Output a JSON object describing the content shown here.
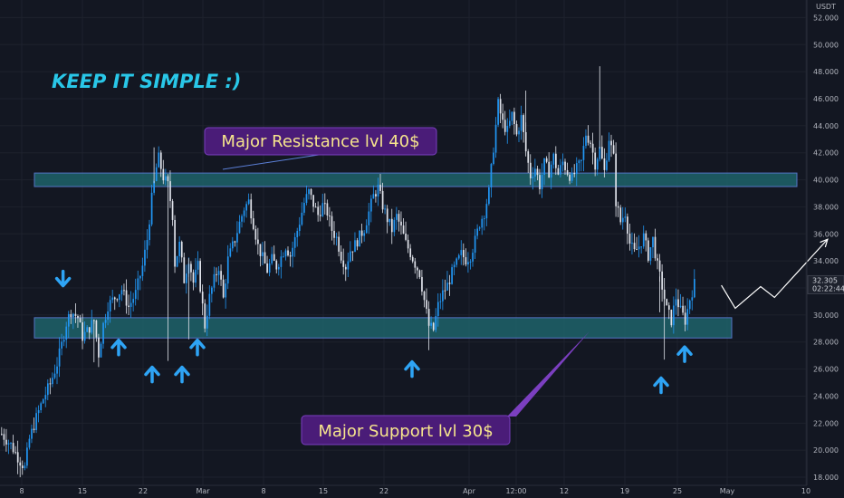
{
  "chart_data": {
    "type": "candlestick",
    "currency_label": "USDT",
    "yaxis": {
      "ticks": [
        18,
        20,
        22,
        24,
        26,
        28,
        30,
        32,
        34,
        36,
        38,
        40,
        42,
        44,
        46,
        48,
        50,
        52
      ],
      "tick_labels": [
        "18.000",
        "20.000",
        "22.000",
        "24.000",
        "26.000",
        "28.000",
        "30.000",
        "32.000",
        "34.000",
        "36.000",
        "38.000",
        "40.000",
        "42.000",
        "44.000",
        "46.000",
        "48.000",
        "50.000",
        "52.000"
      ],
      "range": [
        17.4,
        53.3
      ]
    },
    "xaxis": {
      "tick_labels": [
        "8",
        "15",
        "22",
        "Mar",
        "8",
        "15",
        "22",
        "Apr",
        "12:00",
        "12",
        "19",
        "25",
        "May",
        "10"
      ]
    },
    "current_price": "32.305",
    "countdown": "02:22:44",
    "price_path": [
      [
        0,
        21.2
      ],
      [
        4,
        20.4
      ],
      [
        8,
        19.2
      ],
      [
        10,
        18.7
      ],
      [
        12,
        20.8
      ],
      [
        15,
        22.4
      ],
      [
        18,
        23.8
      ],
      [
        21,
        24.9
      ],
      [
        24,
        26.4
      ],
      [
        26,
        27.8
      ],
      [
        28,
        29.4
      ],
      [
        30,
        30.3
      ],
      [
        33,
        29.8
      ],
      [
        35,
        28.4
      ],
      [
        37,
        28.8
      ],
      [
        40,
        29.6
      ],
      [
        42,
        27.1
      ],
      [
        44,
        29.3
      ],
      [
        46,
        30.7
      ],
      [
        49,
        31.3
      ],
      [
        52,
        31.9
      ],
      [
        55,
        30.6
      ],
      [
        58,
        31.6
      ],
      [
        61,
        33.6
      ],
      [
        63,
        35.6
      ],
      [
        65,
        38.6
      ],
      [
        67,
        40.9
      ],
      [
        68,
        41.6
      ],
      [
        70,
        40.2
      ],
      [
        72,
        39.6
      ],
      [
        74,
        37.4
      ],
      [
        75,
        33.8
      ],
      [
        77,
        35.2
      ],
      [
        79,
        32.6
      ],
      [
        81,
        34.2
      ],
      [
        83,
        32.4
      ],
      [
        85,
        33.6
      ],
      [
        86,
        32.1
      ],
      [
        88,
        29.2
      ],
      [
        90,
        31.3
      ],
      [
        92,
        32.6
      ],
      [
        94,
        33.6
      ],
      [
        96,
        31.2
      ],
      [
        98,
        34.1
      ],
      [
        101,
        35.6
      ],
      [
        103,
        36.8
      ],
      [
        105,
        37.9
      ],
      [
        107,
        38.4
      ],
      [
        109,
        36.8
      ],
      [
        111,
        35.1
      ],
      [
        113,
        34.2
      ],
      [
        115,
        33.3
      ],
      [
        117,
        34.1
      ],
      [
        119,
        33.6
      ],
      [
        121,
        34.3
      ],
      [
        123,
        35.1
      ],
      [
        125,
        34.4
      ],
      [
        127,
        35.6
      ],
      [
        129,
        36.9
      ],
      [
        131,
        38.3
      ],
      [
        133,
        39.1
      ],
      [
        135,
        38.2
      ],
      [
        137,
        37.4
      ],
      [
        139,
        38.1
      ],
      [
        141,
        37.6
      ],
      [
        143,
        36.3
      ],
      [
        145,
        35.7
      ],
      [
        147,
        34.4
      ],
      [
        149,
        33.6
      ],
      [
        151,
        34.8
      ],
      [
        153,
        35.2
      ],
      [
        155,
        35.8
      ],
      [
        157,
        36.4
      ],
      [
        159,
        37.6
      ],
      [
        161,
        38.8
      ],
      [
        163,
        39.4
      ],
      [
        165,
        38.1
      ],
      [
        167,
        37.1
      ],
      [
        169,
        36.3
      ],
      [
        171,
        37.3
      ],
      [
        173,
        36.4
      ],
      [
        175,
        35.3
      ],
      [
        177,
        34.6
      ],
      [
        179,
        33.8
      ],
      [
        181,
        33.1
      ],
      [
        183,
        31.1
      ],
      [
        185,
        29.2
      ],
      [
        187,
        28.9
      ],
      [
        189,
        30.7
      ],
      [
        191,
        31.6
      ],
      [
        193,
        32.2
      ],
      [
        195,
        33.1
      ],
      [
        197,
        33.8
      ],
      [
        199,
        34.5
      ],
      [
        201,
        34.1
      ],
      [
        203,
        34.4
      ],
      [
        205,
        35.5
      ],
      [
        207,
        36.8
      ],
      [
        209,
        37.6
      ],
      [
        211,
        39.1
      ],
      [
        213,
        42.4
      ],
      [
        215,
        45.6
      ],
      [
        217,
        44.2
      ],
      [
        219,
        43.6
      ],
      [
        221,
        44.8
      ],
      [
        223,
        43.3
      ],
      [
        225,
        44.6
      ],
      [
        227,
        42.1
      ],
      [
        229,
        40.3
      ],
      [
        231,
        40.9
      ],
      [
        233,
        39.6
      ],
      [
        235,
        41.2
      ],
      [
        237,
        40.6
      ],
      [
        239,
        41.7
      ],
      [
        241,
        40.4
      ],
      [
        243,
        41.3
      ],
      [
        245,
        40.6
      ],
      [
        247,
        40.1
      ],
      [
        249,
        40.8
      ],
      [
        251,
        41.3
      ],
      [
        253,
        43.4
      ],
      [
        255,
        42.8
      ],
      [
        257,
        41.2
      ],
      [
        259,
        42.3
      ],
      [
        261,
        40.6
      ],
      [
        263,
        43.1
      ],
      [
        265,
        41.6
      ],
      [
        266,
        38.4
      ],
      [
        268,
        36.9
      ],
      [
        270,
        37.6
      ],
      [
        272,
        35.3
      ],
      [
        274,
        34.6
      ],
      [
        276,
        35.1
      ],
      [
        278,
        35.8
      ],
      [
        280,
        34.4
      ],
      [
        282,
        35.6
      ],
      [
        284,
        33.6
      ],
      [
        286,
        32.1
      ],
      [
        288,
        30.4
      ],
      [
        290,
        29.6
      ],
      [
        292,
        31.3
      ],
      [
        294,
        30.3
      ],
      [
        296,
        29.6
      ],
      [
        298,
        31.2
      ],
      [
        300,
        32.3
      ]
    ],
    "wicks": [
      [
        40,
        26.5
      ],
      [
        66,
        42.4
      ],
      [
        72,
        26.6
      ],
      [
        81,
        28.2
      ],
      [
        185,
        27.4
      ],
      [
        227,
        46.6
      ],
      [
        259,
        48.4
      ],
      [
        285,
        30.2
      ],
      [
        287,
        26.7
      ]
    ],
    "zones": [
      {
        "name": "Major Resistance lvl 40$",
        "low": 39.5,
        "high": 40.5
      },
      {
        "name": "Major Support lvl 30$",
        "low": 28.3,
        "high": 29.8
      }
    ],
    "projection": [
      [
        31.2,
        32.2
      ],
      [
        31.8,
        30.5
      ],
      [
        32.9,
        32.1
      ],
      [
        33.5,
        31.3
      ],
      [
        35.8,
        35.6
      ]
    ],
    "annotations": {
      "headline": "KEEP IT SIMPLE :)",
      "resistance_label": "Major Resistance lvl 40$",
      "support_label": "Major Support lvl 30$"
    },
    "arrows_down": [
      [
        13,
        32.7
      ]
    ],
    "arrows_up": [
      [
        24,
        27.6
      ],
      [
        33,
        25.6
      ],
      [
        39,
        25.6
      ],
      [
        42,
        27.6
      ],
      [
        86,
        26.0
      ],
      [
        139,
        24.8
      ],
      [
        144,
        27.1
      ]
    ]
  }
}
